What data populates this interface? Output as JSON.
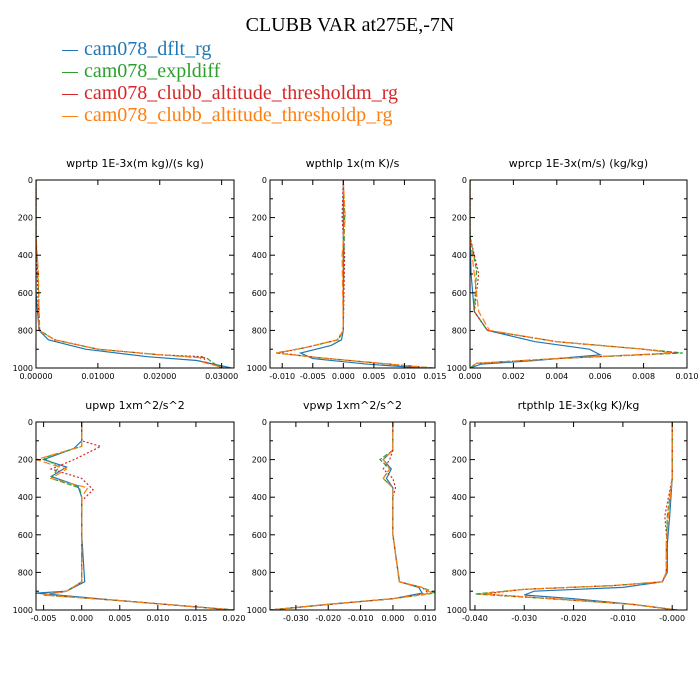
{
  "title": "CLUBB VAR at275E,-7N",
  "series_style": [
    {
      "name": "cam078_dflt_rg",
      "color": "#1f77b4",
      "dash": ""
    },
    {
      "name": "cam078_expldiff",
      "color": "#2ca02c",
      "dash": "5,2"
    },
    {
      "name": "cam078_clubb_altitude_thresholdm_rg",
      "color": "#d62728",
      "dash": "2,2"
    },
    {
      "name": "cam078_clubb_altitude_thresholdp_rg",
      "color": "#ff7f0e",
      "dash": "7,3"
    }
  ],
  "chart_data": [
    {
      "type": "line",
      "title": "wprtp 1E-3x(m kg)/(s kg)",
      "xlim": [
        0,
        0.032
      ],
      "ylim": [
        1000,
        0
      ],
      "xticks": [
        0,
        0.01,
        0.02,
        0.03
      ],
      "xtick_labels": [
        "0.00000",
        "0.01000",
        "0.02000",
        "0.03000"
      ],
      "yticks": [
        0,
        200,
        400,
        600,
        800,
        1000
      ],
      "series": [
        {
          "name": "cam078_dflt_rg",
          "x": [
            0,
            0,
            0,
            0.0005,
            0.002,
            0.008,
            0.018,
            0.026,
            0.0316
          ],
          "y": [
            0,
            300,
            600,
            800,
            850,
            900,
            940,
            960,
            1000
          ]
        },
        {
          "name": "cam078_expldiff",
          "x": [
            0,
            0,
            0.0003,
            0.0006,
            0.003,
            0.01,
            0.02,
            0.0275,
            0.0285,
            0.03
          ],
          "y": [
            0,
            300,
            500,
            800,
            850,
            900,
            930,
            945,
            970,
            1000
          ]
        },
        {
          "name": "cam078_clubb_altitude_thresholdm_rg",
          "x": [
            0,
            0,
            0.0002,
            0.0005,
            0.003,
            0.01,
            0.02,
            0.027,
            0.0275,
            0.0305
          ],
          "y": [
            0,
            300,
            500,
            800,
            850,
            900,
            930,
            940,
            970,
            1000
          ]
        },
        {
          "name": "cam078_clubb_altitude_thresholdp_rg",
          "x": [
            0,
            0,
            0.0004,
            0.0005,
            0.003,
            0.01,
            0.02,
            0.0265,
            0.027,
            0.0305
          ],
          "y": [
            0,
            300,
            500,
            800,
            850,
            900,
            930,
            945,
            970,
            1000
          ]
        }
      ]
    },
    {
      "type": "line",
      "title": "wpthlp 1x(m K)/s",
      "xlim": [
        -0.012,
        0.015
      ],
      "ylim": [
        1000,
        0
      ],
      "xticks": [
        -0.01,
        -0.005,
        0,
        0.005,
        0.01,
        0.015
      ],
      "xtick_labels": [
        "-0.010",
        "-0.005",
        "0.000",
        "0.005",
        "0.010",
        "0.015"
      ],
      "yticks": [
        0,
        200,
        400,
        600,
        800,
        1000
      ],
      "series": [
        {
          "name": "cam078_dflt_rg",
          "x": [
            0,
            0,
            0,
            0,
            -0.0003,
            -0.002,
            -0.007,
            -0.005,
            0.004,
            0.013
          ],
          "y": [
            0,
            200,
            600,
            800,
            850,
            880,
            920,
            950,
            980,
            1000
          ]
        },
        {
          "name": "cam078_expldiff",
          "x": [
            0,
            0.0002,
            0.0001,
            0,
            -0.0008,
            -0.006,
            -0.011,
            -0.004,
            0.006,
            0.0148
          ],
          "y": [
            0,
            200,
            400,
            800,
            850,
            890,
            920,
            945,
            975,
            1000
          ]
        },
        {
          "name": "cam078_clubb_altitude_thresholdm_rg",
          "x": [
            0,
            -0.0002,
            0.0002,
            0,
            -0.001,
            -0.006,
            -0.0105,
            -0.004,
            0.006,
            0.014
          ],
          "y": [
            0,
            200,
            400,
            800,
            850,
            890,
            920,
            945,
            975,
            1000
          ]
        },
        {
          "name": "cam078_clubb_altitude_thresholdp_rg",
          "x": [
            0,
            0.0003,
            -0.0002,
            0,
            -0.001,
            -0.006,
            -0.011,
            -0.004,
            0.006,
            0.0145
          ],
          "y": [
            0,
            200,
            400,
            800,
            850,
            890,
            920,
            945,
            975,
            1000
          ]
        }
      ]
    },
    {
      "type": "line",
      "title": "wprcp 1E-3x(m/s) (kg/kg)",
      "xlim": [
        0,
        0.01
      ],
      "ylim": [
        1000,
        0
      ],
      "xticks": [
        0,
        0.002,
        0.004,
        0.006,
        0.008,
        0.01
      ],
      "xtick_labels": [
        "0.000",
        "0.002",
        "0.004",
        "0.006",
        "0.008",
        "0.010"
      ],
      "yticks": [
        0,
        200,
        400,
        600,
        800,
        1000
      ],
      "series": [
        {
          "name": "cam078_dflt_rg",
          "x": [
            0,
            0,
            5e-05,
            0.0002,
            0.0008,
            0.003,
            0.0055,
            0.006,
            0.003,
            0.0005,
            0
          ],
          "y": [
            0,
            300,
            500,
            700,
            800,
            860,
            900,
            930,
            960,
            980,
            1000
          ]
        },
        {
          "name": "cam078_expldiff",
          "x": [
            0,
            0,
            0.0003,
            0.0002,
            0.0008,
            0.004,
            0.008,
            0.0098,
            0.004,
            0.0003,
            0
          ],
          "y": [
            0,
            300,
            480,
            700,
            800,
            860,
            900,
            920,
            950,
            975,
            1000
          ]
        },
        {
          "name": "cam078_clubb_altitude_thresholdm_rg",
          "x": [
            0,
            0,
            0.0004,
            0.0002,
            0.0008,
            0.004,
            0.008,
            0.0095,
            0.004,
            0.0003,
            0
          ],
          "y": [
            0,
            300,
            500,
            700,
            800,
            860,
            900,
            920,
            950,
            975,
            1000
          ]
        },
        {
          "name": "cam078_clubb_altitude_thresholdp_rg",
          "x": [
            0,
            0,
            0.0002,
            0.0004,
            0.0009,
            0.004,
            0.008,
            0.0093,
            0.004,
            0.0003,
            0
          ],
          "y": [
            0,
            300,
            500,
            700,
            800,
            860,
            900,
            920,
            950,
            975,
            1000
          ]
        }
      ]
    },
    {
      "type": "line",
      "title": "upwp 1xm^2/s^2",
      "xlim": [
        -0.006,
        0.02
      ],
      "ylim": [
        1000,
        0
      ],
      "xticks": [
        -0.005,
        0,
        0.005,
        0.01,
        0.015,
        0.02
      ],
      "xtick_labels": [
        "-0.005",
        "0.000",
        "0.005",
        "0.010",
        "0.015",
        "0.020"
      ],
      "yticks": [
        0,
        200,
        400,
        600,
        800,
        1000
      ],
      "series": [
        {
          "name": "cam078_dflt_rg",
          "x": [
            0,
            0,
            -0.001,
            -0.005,
            -0.002,
            -0.004,
            -0.0005,
            0,
            0,
            0.0004,
            -0.002,
            -0.006,
            0.005,
            0.02
          ],
          "y": [
            0,
            100,
            140,
            200,
            240,
            290,
            340,
            400,
            600,
            850,
            900,
            910,
            950,
            1000
          ]
        },
        {
          "name": "cam078_expldiff",
          "x": [
            0,
            0,
            0,
            -0.005,
            -0.003,
            -0.004,
            -0.0003,
            0,
            0,
            0,
            -0.002,
            -0.005,
            0.005,
            0.02
          ],
          "y": [
            0,
            100,
            130,
            190,
            240,
            300,
            350,
            400,
            600,
            850,
            900,
            920,
            950,
            1000
          ]
        },
        {
          "name": "cam078_clubb_altitude_thresholdm_rg",
          "x": [
            0,
            0,
            0.0025,
            -0.001,
            -0.004,
            0,
            0.0015,
            0,
            0,
            0,
            -0.002,
            -0.005,
            0.005,
            0.02
          ],
          "y": [
            0,
            100,
            130,
            200,
            250,
            300,
            360,
            420,
            600,
            850,
            900,
            920,
            950,
            1000
          ]
        },
        {
          "name": "cam078_clubb_altitude_thresholdp_rg",
          "x": [
            0,
            0,
            0,
            -0.006,
            -0.002,
            -0.004,
            0.0008,
            0,
            0,
            0,
            -0.002,
            -0.005,
            0.005,
            0.02
          ],
          "y": [
            0,
            100,
            130,
            200,
            250,
            300,
            350,
            400,
            600,
            850,
            900,
            920,
            950,
            1000
          ]
        }
      ]
    },
    {
      "type": "line",
      "title": "vpwp 1xm^2/s^2",
      "xlim": [
        -0.038,
        0.013
      ],
      "ylim": [
        1000,
        0
      ],
      "xticks": [
        -0.03,
        -0.02,
        -0.01,
        0,
        0.01
      ],
      "xtick_labels": [
        "-0.030",
        "-0.020",
        "-0.010",
        "0.000",
        "0.010"
      ],
      "yticks": [
        0,
        200,
        400,
        600,
        800,
        1000
      ],
      "series": [
        {
          "name": "cam078_dflt_rg",
          "x": [
            0,
            0,
            0,
            -0.003,
            -0.0005,
            -0.002,
            0,
            0,
            0,
            0.002,
            0.008,
            0.009,
            0,
            -0.02,
            -0.038
          ],
          "y": [
            0,
            100,
            150,
            200,
            250,
            300,
            350,
            400,
            600,
            850,
            880,
            910,
            940,
            970,
            1000
          ]
        },
        {
          "name": "cam078_expldiff",
          "x": [
            0,
            0,
            0,
            -0.004,
            -0.001,
            -0.003,
            0,
            0,
            0,
            0.002,
            0.009,
            0.013,
            0,
            -0.02,
            -0.038
          ],
          "y": [
            0,
            100,
            150,
            200,
            250,
            300,
            350,
            400,
            600,
            850,
            880,
            910,
            940,
            970,
            1000
          ]
        },
        {
          "name": "cam078_clubb_altitude_thresholdm_rg",
          "x": [
            0,
            0,
            0,
            -0.001,
            -0.003,
            0,
            0.0008,
            0,
            0,
            0.002,
            0.009,
            0.011,
            0,
            -0.02,
            -0.038
          ],
          "y": [
            0,
            100,
            150,
            200,
            250,
            300,
            350,
            400,
            600,
            850,
            880,
            910,
            940,
            970,
            1000
          ]
        },
        {
          "name": "cam078_clubb_altitude_thresholdp_rg",
          "x": [
            0,
            0,
            0,
            -0.003,
            -0.001,
            -0.003,
            0,
            0,
            0,
            0.002,
            0.009,
            0.012,
            0,
            -0.02,
            -0.038
          ],
          "y": [
            0,
            100,
            150,
            200,
            250,
            300,
            350,
            400,
            600,
            850,
            880,
            910,
            940,
            970,
            1000
          ]
        }
      ]
    },
    {
      "type": "line",
      "title": "rtpthlp 1E-3x(kg K)/kg",
      "xlim": [
        -0.041,
        0.003
      ],
      "ylim": [
        1000,
        0
      ],
      "xticks": [
        -0.04,
        -0.03,
        -0.02,
        -0.01,
        0
      ],
      "xtick_labels": [
        "-0.040",
        "-0.030",
        "-0.020",
        "-0.010",
        "-0.000"
      ],
      "yticks": [
        0,
        200,
        400,
        600,
        800,
        1000
      ],
      "series": [
        {
          "name": "cam078_dflt_rg",
          "x": [
            0,
            0,
            -0.0005,
            -0.001,
            -0.001,
            -0.002,
            -0.01,
            -0.028,
            -0.03,
            -0.02,
            -0.008,
            0.001
          ],
          "y": [
            0,
            300,
            500,
            650,
            800,
            850,
            880,
            900,
            920,
            940,
            970,
            1000
          ]
        },
        {
          "name": "cam078_expldiff",
          "x": [
            0,
            0,
            -0.001,
            -0.0012,
            -0.0012,
            -0.002,
            -0.012,
            -0.03,
            -0.04,
            -0.025,
            -0.008,
            0.001
          ],
          "y": [
            0,
            300,
            500,
            650,
            800,
            850,
            870,
            890,
            915,
            940,
            970,
            1000
          ]
        },
        {
          "name": "cam078_clubb_altitude_thresholdm_rg",
          "x": [
            0,
            0,
            -0.0015,
            -0.001,
            -0.0012,
            -0.002,
            -0.012,
            -0.03,
            -0.038,
            -0.024,
            -0.008,
            0.001
          ],
          "y": [
            0,
            300,
            500,
            650,
            800,
            850,
            870,
            890,
            915,
            940,
            970,
            1000
          ]
        },
        {
          "name": "cam078_clubb_altitude_thresholdp_rg",
          "x": [
            0,
            0,
            -0.0008,
            -0.0012,
            -0.0012,
            -0.002,
            -0.012,
            -0.03,
            -0.039,
            -0.024,
            -0.008,
            0.001
          ],
          "y": [
            0,
            300,
            500,
            650,
            800,
            850,
            870,
            890,
            915,
            940,
            970,
            1000
          ]
        }
      ]
    }
  ]
}
